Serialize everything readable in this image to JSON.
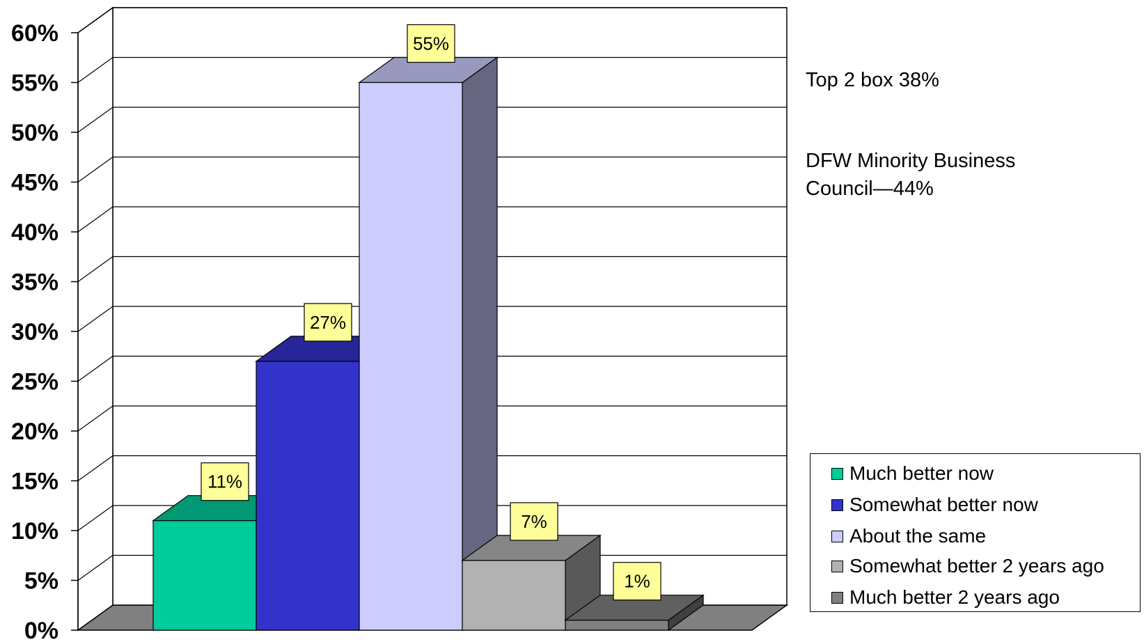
{
  "chart_data": {
    "type": "bar",
    "categories": [
      "Much better now",
      "Somewhat better now",
      "About the same",
      "Somewhat better 2 years ago",
      "Much better 2 years ago"
    ],
    "values": [
      11,
      27,
      55,
      7,
      1
    ],
    "data_labels": [
      "11%",
      "27%",
      "55%",
      "7%",
      "1%"
    ],
    "colors": [
      "#00CC99",
      "#3333CC",
      "#CCCCFF",
      "#B2B2B2",
      "#808080"
    ],
    "y_ticks": [
      0,
      5,
      10,
      15,
      20,
      25,
      30,
      35,
      40,
      45,
      50,
      55,
      60
    ],
    "y_tick_labels": [
      "0%",
      "5%",
      "10%",
      "15%",
      "20%",
      "25%",
      "30%",
      "35%",
      "40%",
      "45%",
      "50%",
      "55%",
      "60%"
    ],
    "ylim": [
      0,
      60
    ],
    "grid": true,
    "three_d": true,
    "legend": "bottom-right",
    "annotations": [
      "Top 2 box 38%",
      "DFW Minority Business Council—44%"
    ],
    "title": "",
    "xlabel": "",
    "ylabel": ""
  },
  "annotations": {
    "top2": "Top 2 box 38%",
    "council": "DFW Minority Business Council—44%"
  },
  "legend": {
    "items": [
      {
        "label": "Much better now",
        "color": "#00CC99"
      },
      {
        "label": "Somewhat better now",
        "color": "#3333CC"
      },
      {
        "label": "About the same",
        "color": "#CCCCFF"
      },
      {
        "label": "Somewhat better 2 years ago",
        "color": "#B2B2B2"
      },
      {
        "label": "Much better 2 years ago",
        "color": "#808080"
      }
    ]
  }
}
